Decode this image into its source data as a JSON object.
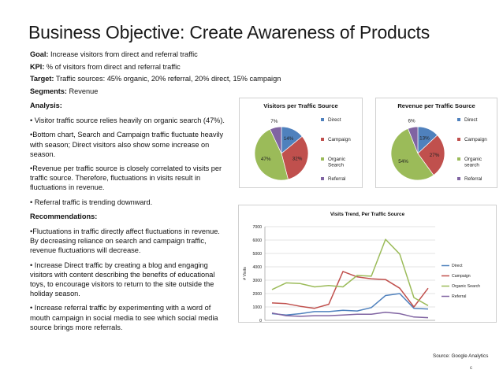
{
  "slide": {
    "title": "Business Objective: Create Awareness of Products",
    "page_number": "c"
  },
  "meta": {
    "goal_label": "Goal:",
    "goal_text": " Increase visitors from direct and referral traffic",
    "kpi_label": "KPI:",
    "kpi_text": " % of visitors from direct and referral traffic",
    "target_label": "Target:",
    "target_text": " Traffic sources: 45% organic, 20% referral, 20% direct, 15% campaign",
    "segments_label": "Segments:",
    "segments_text": " Revenue"
  },
  "analysis": {
    "heading": "Analysis:",
    "items": [
      "•  Visitor traffic source relies heavily on organic search (47%).",
      "•Bottom chart, Search and Campaign traffic fluctuate heavily with season; Direct  visitors also show some increase on season.",
      "•Revenue per traffic source is closely correlated to visits per traffic source. Therefore, fluctuations in visits result in fluctuations in revenue.",
      "•  Referral traffic is trending downward."
    ]
  },
  "recommendations": {
    "heading": "Recommendations:",
    "items": [
      "•Fluctuations in traffic directly affect fluctuations in revenue. By decreasing reliance on search and campaign traffic, revenue fluctuations will decrease.",
      "•  Increase  Direct traffic by creating a blog and engaging visitors with content describing the benefits of educational toys, to encourage visitors to return to the site outside the holiday season.",
      "•  Increase referral traffic by experimenting with a word of mouth campaign in social media to see which social media source brings more referrals."
    ]
  },
  "source_note": "Source: Google Analytics",
  "colors": {
    "direct": "#4f81bd",
    "campaign": "#c0504d",
    "organic": "#9bbb59",
    "referral": "#8064a2"
  },
  "chart_data": [
    {
      "type": "pie",
      "title": "Visitors per Traffic Source",
      "categories": [
        "Direct",
        "Campaign",
        "Organic Search",
        "Referral"
      ],
      "legend": [
        "Direct",
        "Campaign",
        "Organic\nSearch",
        "Referral"
      ],
      "values": [
        14,
        32,
        47,
        7
      ],
      "labels": [
        "14%",
        "32%",
        "47%",
        "7%"
      ],
      "legend_position": "right"
    },
    {
      "type": "pie",
      "title": "Revenue per Traffic Source",
      "categories": [
        "Direct",
        "Campaign",
        "Organic search",
        "Referral"
      ],
      "legend": [
        "Direct",
        "Campaign",
        "Organic\nsearch",
        "Referral"
      ],
      "values": [
        13,
        27,
        54,
        6
      ],
      "labels": [
        "13%",
        "27%",
        "54%",
        "6%"
      ],
      "legend_position": "right"
    },
    {
      "type": "line",
      "title": "Visits Trend, Per Traffic Source",
      "ylabel": "# Visits",
      "ylim": [
        0,
        7000
      ],
      "yticks": [
        0,
        1000,
        2000,
        3000,
        4000,
        5000,
        6000,
        7000
      ],
      "grid": true,
      "legend_position": "right",
      "categories": [
        "Mar-12",
        "Apr-12",
        "May-12",
        "Jun-12",
        "Jul-12",
        "Aug-12",
        "Sep-12",
        "Oct-12",
        "Nov-12",
        "Dec-12",
        "Jan-13",
        "Feb-13"
      ],
      "series": [
        {
          "name": "Direct",
          "values": [
            500,
            400,
            500,
            650,
            650,
            750,
            700,
            950,
            1850,
            2000,
            900,
            850
          ]
        },
        {
          "name": "Campaign",
          "values": [
            1300,
            1250,
            1050,
            900,
            1200,
            3650,
            3250,
            3100,
            3050,
            2400,
            1000,
            2400
          ]
        },
        {
          "name": "Organic Search",
          "values": [
            2300,
            2800,
            2750,
            2500,
            2600,
            2500,
            3350,
            3300,
            6050,
            4950,
            1700,
            1100
          ]
        },
        {
          "name": "Referral",
          "values": [
            550,
            350,
            300,
            350,
            350,
            400,
            450,
            450,
            600,
            500,
            250,
            200
          ]
        }
      ]
    }
  ]
}
